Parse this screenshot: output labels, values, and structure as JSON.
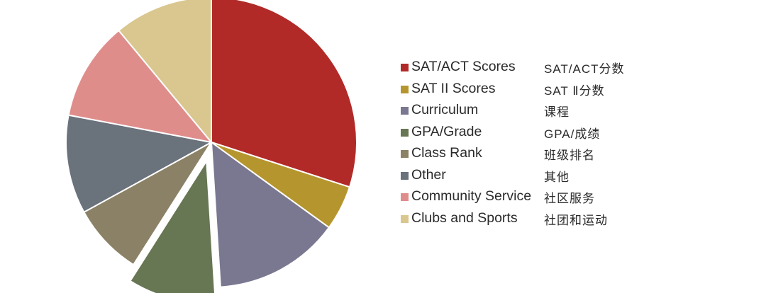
{
  "chart_data": {
    "type": "pie",
    "start_angle_deg": 0,
    "direction": "clockwise",
    "exploded_slice": "GPA/Grade",
    "slices": [
      {
        "name": "SAT/ACT Scores",
        "name_zh": "SAT/ACT分数",
        "value": 30,
        "color": "#b12a28"
      },
      {
        "name": "SAT II Scores",
        "name_zh": "SAT Ⅱ分数",
        "value": 5,
        "color": "#b5962e"
      },
      {
        "name": "Curriculum",
        "name_zh": "课程",
        "value": 14,
        "color": "#7a7890"
      },
      {
        "name": "GPA/Grade",
        "name_zh": "GPA/成绩",
        "value": 10,
        "color": "#677653"
      },
      {
        "name": "Class Rank",
        "name_zh": "班级排名",
        "value": 8,
        "color": "#8b8166"
      },
      {
        "name": "Other",
        "name_zh": "其他",
        "value": 11,
        "color": "#6a727c"
      },
      {
        "name": "Community Service",
        "name_zh": "社区服务",
        "value": 11,
        "color": "#df8d8b"
      },
      {
        "name": "Clubs and Sports",
        "name_zh": "社团和运动",
        "value": 11,
        "color": "#d9c78f"
      }
    ]
  }
}
